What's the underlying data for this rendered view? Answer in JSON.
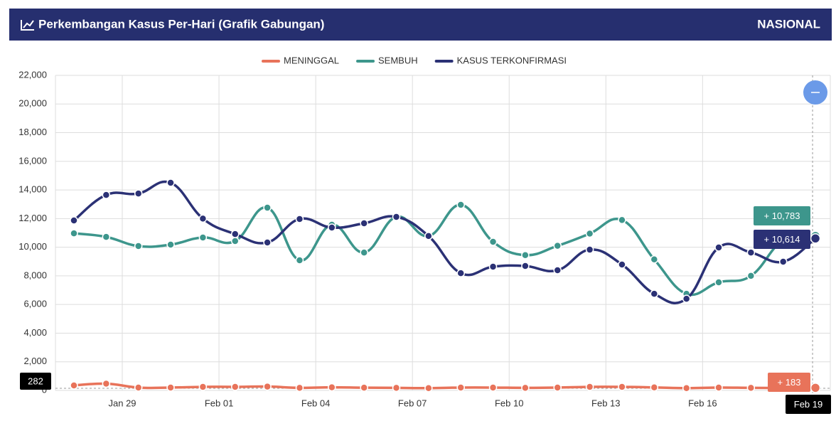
{
  "chart_data": {
    "type": "line",
    "title": "Perkembangan Kasus Per-Hari (Grafik Gabungan)",
    "region": "NASIONAL",
    "categories": [
      null,
      null,
      "Jan 29",
      null,
      null,
      "Feb 01",
      null,
      null,
      "Feb 04",
      null,
      null,
      "Feb 07",
      null,
      null,
      "Feb 10",
      null,
      null,
      "Feb 13",
      null,
      null,
      "Feb 16",
      null,
      null,
      "Feb 19"
    ],
    "series": [
      {
        "name": "MENINGGAL",
        "color": "#e8735a",
        "values": [
          350,
          470,
          200,
          200,
          250,
          250,
          270,
          180,
          220,
          190,
          180,
          160,
          200,
          200,
          180,
          200,
          250,
          250,
          210,
          160,
          200,
          180,
          170,
          183
        ]
      },
      {
        "name": "SEMBUH",
        "color": "#3d968c",
        "values": [
          10970,
          10720,
          10080,
          10180,
          10680,
          10430,
          12760,
          9090,
          11570,
          9630,
          12120,
          10780,
          12960,
          10380,
          9450,
          10100,
          10950,
          11900,
          9150,
          6750,
          7550,
          8000,
          10500,
          10783
        ]
      },
      {
        "name": "KASUS TERKONFIRMASI",
        "color": "#2b3175",
        "values": [
          11870,
          13650,
          13750,
          14500,
          12000,
          10920,
          10330,
          11970,
          11370,
          11670,
          12120,
          10780,
          8190,
          8640,
          8690,
          8390,
          9830,
          8790,
          6750,
          6400,
          9980,
          9630,
          8990,
          10614
        ]
      }
    ],
    "value_labels": [
      "+ 183",
      "+ 10,783",
      "+ 10,614"
    ],
    "crosshair_label": "282",
    "ylim": [
      0,
      22000
    ],
    "yticks": [
      0,
      {
        "value": 2000,
        "label": "2,000"
      },
      {
        "value": 4000,
        "label": "4,000"
      },
      {
        "value": 6000,
        "label": "6,000"
      },
      {
        "value": 8000,
        "label": "8,000"
      },
      {
        "value": 10000,
        "label": "10,000"
      },
      {
        "value": 12000,
        "label": "12,000"
      },
      {
        "value": 14000,
        "label": "14,000"
      },
      {
        "value": 16000,
        "label": "16,000"
      },
      {
        "value": 18000,
        "label": "18,000"
      },
      {
        "value": 20000,
        "label": "20,000"
      },
      {
        "value": 22000,
        "label": "22,000"
      }
    ],
    "grid": true
  }
}
